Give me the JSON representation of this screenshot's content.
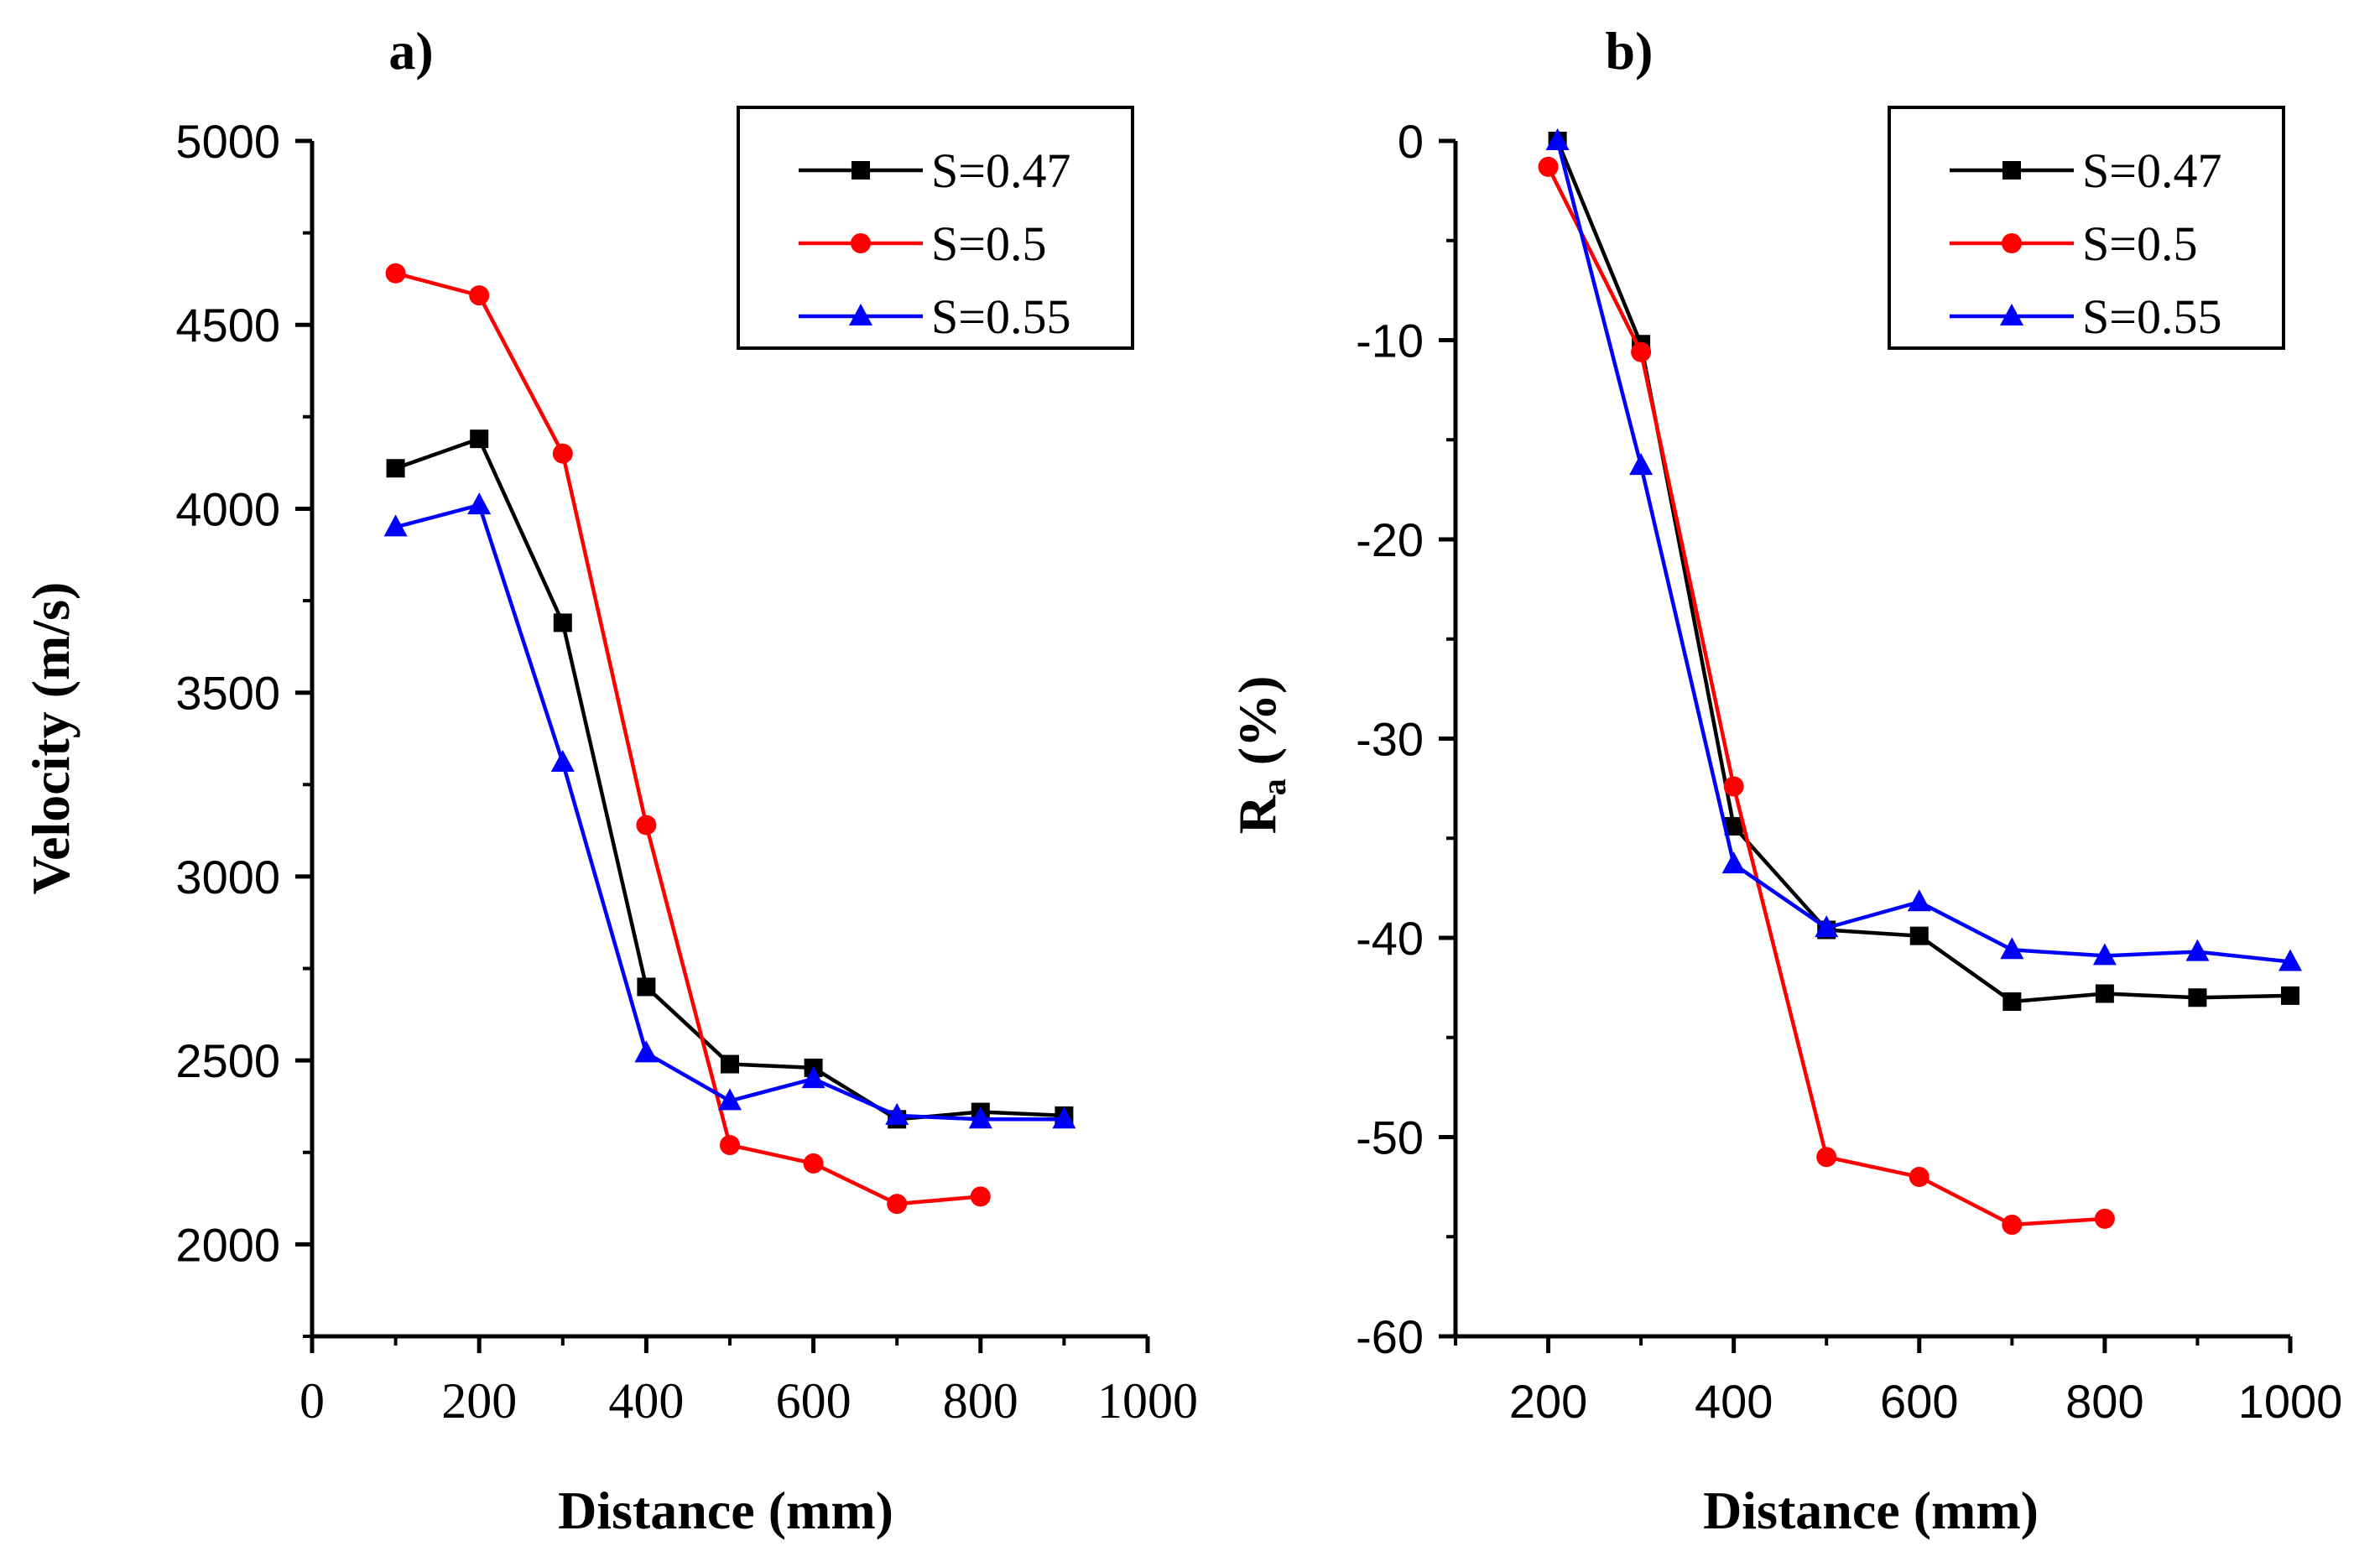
{
  "chart_data": [
    {
      "type": "line",
      "panel_label": "a)",
      "xlabel": "Distance (mm)",
      "ylabel": "Velocity (m/s)",
      "xlim": [
        0,
        1000
      ],
      "ylim": [
        1750,
        5000
      ],
      "xticks": [
        "0",
        "200",
        "400",
        "600",
        "800",
        "1000"
      ],
      "yticks": [
        "2000",
        "2500",
        "3000",
        "3500",
        "4000",
        "4500",
        "5000"
      ],
      "legend_position": "top-right",
      "series": [
        {
          "name": "S=0.47",
          "color": "#000000",
          "marker": "square",
          "x": [
            100,
            200,
            300,
            400,
            500,
            600,
            700,
            800,
            900
          ],
          "y": [
            4110,
            4190,
            3690,
            2700,
            2490,
            2480,
            2340,
            2360,
            2350
          ]
        },
        {
          "name": "S=0.5",
          "color": "#ff0000",
          "marker": "circle",
          "x": [
            100,
            200,
            300,
            400,
            500,
            600,
            700,
            800
          ],
          "y": [
            4640,
            4580,
            4150,
            3140,
            2270,
            2220,
            2110,
            2130
          ]
        },
        {
          "name": "S=0.55",
          "color": "#0000ff",
          "marker": "triangle",
          "x": [
            100,
            200,
            300,
            400,
            500,
            600,
            700,
            800,
            900
          ],
          "y": [
            3950,
            4010,
            3310,
            2520,
            2390,
            2450,
            2350,
            2340,
            2340
          ]
        }
      ]
    },
    {
      "type": "line",
      "panel_label": "b)",
      "xlabel": "Distance (mm)",
      "ylabel": "R",
      "ylabel_sub": "a",
      "ylabel_suffix": " (%)",
      "xlim": [
        100,
        1000
      ],
      "ylim": [
        -60,
        0
      ],
      "xticks": [
        "200",
        "400",
        "600",
        "800",
        "1000"
      ],
      "yticks": [
        "0",
        "-10",
        "-20",
        "-30",
        "-40",
        "-50",
        "-60"
      ],
      "legend_position": "top-right",
      "series": [
        {
          "name": "S=0.47",
          "color": "#000000",
          "marker": "square",
          "x": [
            210,
            300,
            400,
            500,
            600,
            700,
            800,
            900,
            1000
          ],
          "y": [
            0,
            -10.2,
            -34.4,
            -39.6,
            -39.9,
            -43.2,
            -42.8,
            -43.0,
            -42.9
          ]
        },
        {
          "name": "S=0.5",
          "color": "#ff0000",
          "marker": "circle",
          "x": [
            200,
            300,
            400,
            500,
            600,
            700,
            800
          ],
          "y": [
            -1.3,
            -10.6,
            -32.4,
            -51.0,
            -52.0,
            -54.4,
            -54.1
          ]
        },
        {
          "name": "S=0.55",
          "color": "#0000ff",
          "marker": "triangle",
          "x": [
            210,
            300,
            400,
            500,
            600,
            700,
            800,
            900,
            1000
          ],
          "y": [
            0,
            -16.3,
            -36.3,
            -39.5,
            -38.2,
            -40.6,
            -40.9,
            -40.7,
            -41.2
          ]
        }
      ]
    }
  ]
}
